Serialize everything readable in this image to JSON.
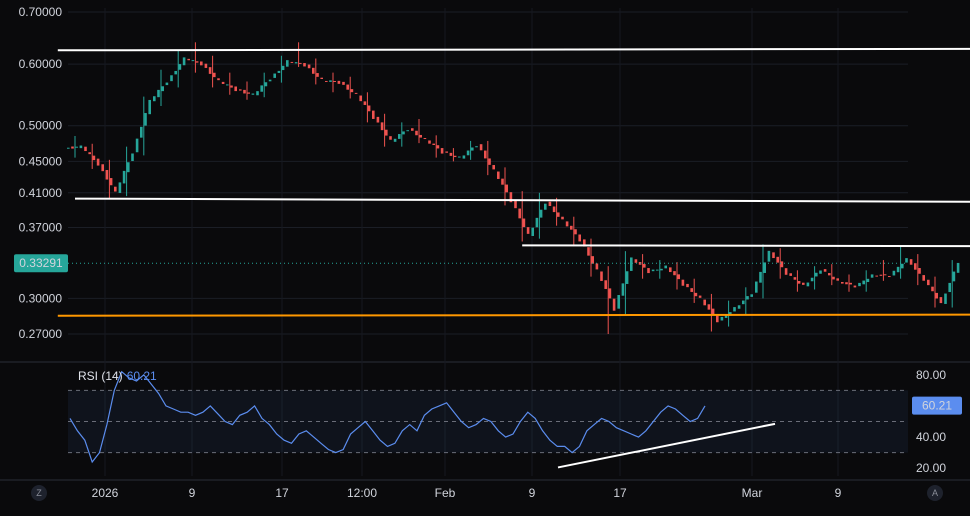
{
  "chart_data": [
    {
      "type": "candlestick",
      "y_scale": "log",
      "y_ticks": [
        "0.70000",
        "0.60000",
        "0.50000",
        "0.45000",
        "0.41000",
        "0.37000",
        "0.30000",
        "0.27000"
      ],
      "y_tick_values": [
        0.7,
        0.6,
        0.5,
        0.45,
        0.41,
        0.37,
        0.3,
        0.27
      ],
      "last_price": "0.33291",
      "last_price_value": 0.33291,
      "x_ticks": [
        "2026",
        "9",
        "17",
        "12:00",
        "Feb",
        "9",
        "17",
        "Mar",
        "9"
      ],
      "series": [
        {
          "x": "Jan 1",
          "o": 0.468,
          "h": 0.485,
          "l": 0.455,
          "c": 0.47
        },
        {
          "x": "Jan 2",
          "o": 0.47,
          "h": 0.474,
          "l": 0.44,
          "c": 0.446
        },
        {
          "x": "Jan 3",
          "o": 0.446,
          "h": 0.452,
          "l": 0.402,
          "c": 0.41
        },
        {
          "x": "Jan 4",
          "o": 0.41,
          "h": 0.47,
          "l": 0.406,
          "c": 0.462
        },
        {
          "x": "Jan 5",
          "o": 0.462,
          "h": 0.545,
          "l": 0.458,
          "c": 0.538
        },
        {
          "x": "Jan 6",
          "o": 0.538,
          "h": 0.59,
          "l": 0.53,
          "c": 0.57
        },
        {
          "x": "Jan 7",
          "o": 0.57,
          "h": 0.625,
          "l": 0.56,
          "c": 0.61
        },
        {
          "x": "Jan 8",
          "o": 0.61,
          "h": 0.64,
          "l": 0.585,
          "c": 0.6
        },
        {
          "x": "Jan 9",
          "o": 0.6,
          "h": 0.615,
          "l": 0.56,
          "c": 0.57
        },
        {
          "x": "Jan 10",
          "o": 0.57,
          "h": 0.585,
          "l": 0.548,
          "c": 0.556
        },
        {
          "x": "Jan 11",
          "o": 0.556,
          "h": 0.57,
          "l": 0.54,
          "c": 0.548
        },
        {
          "x": "Jan 12",
          "o": 0.548,
          "h": 0.585,
          "l": 0.544,
          "c": 0.575
        },
        {
          "x": "Jan 13",
          "o": 0.575,
          "h": 0.615,
          "l": 0.568,
          "c": 0.605
        },
        {
          "x": "Jan 14",
          "o": 0.605,
          "h": 0.64,
          "l": 0.595,
          "c": 0.598
        },
        {
          "x": "Jan 15",
          "o": 0.598,
          "h": 0.61,
          "l": 0.565,
          "c": 0.572
        },
        {
          "x": "Jan 16",
          "o": 0.572,
          "h": 0.585,
          "l": 0.552,
          "c": 0.568
        },
        {
          "x": "Jan 17",
          "o": 0.568,
          "h": 0.578,
          "l": 0.542,
          "c": 0.548
        },
        {
          "x": "Jan 18",
          "o": 0.548,
          "h": 0.552,
          "l": 0.505,
          "c": 0.512
        },
        {
          "x": "Jan 19",
          "o": 0.512,
          "h": 0.518,
          "l": 0.47,
          "c": 0.478
        },
        {
          "x": "Jan 20",
          "o": 0.478,
          "h": 0.505,
          "l": 0.47,
          "c": 0.495
        },
        {
          "x": "Jan 21",
          "o": 0.495,
          "h": 0.51,
          "l": 0.475,
          "c": 0.48
        },
        {
          "x": "Jan 22",
          "o": 0.48,
          "h": 0.486,
          "l": 0.455,
          "c": 0.462
        },
        {
          "x": "Jan 23",
          "o": 0.462,
          "h": 0.468,
          "l": 0.45,
          "c": 0.455
        },
        {
          "x": "Jan 24",
          "o": 0.455,
          "h": 0.478,
          "l": 0.452,
          "c": 0.472
        },
        {
          "x": "Jan 25",
          "o": 0.472,
          "h": 0.478,
          "l": 0.432,
          "c": 0.438
        },
        {
          "x": "Jan 26",
          "o": 0.438,
          "h": 0.442,
          "l": 0.395,
          "c": 0.4
        },
        {
          "x": "Jan 27",
          "o": 0.4,
          "h": 0.412,
          "l": 0.355,
          "c": 0.362
        },
        {
          "x": "Jan 28",
          "o": 0.362,
          "h": 0.41,
          "l": 0.358,
          "c": 0.398
        },
        {
          "x": "Jan 29",
          "o": 0.398,
          "h": 0.404,
          "l": 0.372,
          "c": 0.378
        },
        {
          "x": "Jan 30",
          "o": 0.378,
          "h": 0.382,
          "l": 0.35,
          "c": 0.356
        },
        {
          "x": "Jan 31",
          "o": 0.356,
          "h": 0.358,
          "l": 0.32,
          "c": 0.326
        },
        {
          "x": "Feb 1",
          "o": 0.326,
          "h": 0.33,
          "l": 0.27,
          "c": 0.29
        },
        {
          "x": "Feb 2",
          "o": 0.29,
          "h": 0.345,
          "l": 0.285,
          "c": 0.338
        },
        {
          "x": "Feb 3",
          "o": 0.338,
          "h": 0.342,
          "l": 0.318,
          "c": 0.324
        },
        {
          "x": "Feb 4",
          "o": 0.324,
          "h": 0.336,
          "l": 0.318,
          "c": 0.33
        },
        {
          "x": "Feb 5",
          "o": 0.33,
          "h": 0.334,
          "l": 0.308,
          "c": 0.312
        },
        {
          "x": "Feb 6",
          "o": 0.312,
          "h": 0.318,
          "l": 0.296,
          "c": 0.3
        },
        {
          "x": "Feb 7",
          "o": 0.3,
          "h": 0.304,
          "l": 0.272,
          "c": 0.28
        },
        {
          "x": "Feb 8",
          "o": 0.28,
          "h": 0.298,
          "l": 0.276,
          "c": 0.292
        },
        {
          "x": "Feb 9",
          "o": 0.292,
          "h": 0.31,
          "l": 0.286,
          "c": 0.304
        },
        {
          "x": "Feb 10",
          "o": 0.304,
          "h": 0.352,
          "l": 0.3,
          "c": 0.345
        },
        {
          "x": "Feb 11",
          "o": 0.345,
          "h": 0.348,
          "l": 0.318,
          "c": 0.322
        },
        {
          "x": "Feb 12",
          "o": 0.322,
          "h": 0.326,
          "l": 0.306,
          "c": 0.312
        },
        {
          "x": "Feb 13",
          "o": 0.312,
          "h": 0.33,
          "l": 0.308,
          "c": 0.326
        },
        {
          "x": "Feb 14",
          "o": 0.326,
          "h": 0.332,
          "l": 0.312,
          "c": 0.316
        },
        {
          "x": "Feb 15",
          "o": 0.316,
          "h": 0.322,
          "l": 0.306,
          "c": 0.31
        },
        {
          "x": "Feb 16",
          "o": 0.31,
          "h": 0.326,
          "l": 0.306,
          "c": 0.322
        },
        {
          "x": "Feb 17",
          "o": 0.322,
          "h": 0.336,
          "l": 0.316,
          "c": 0.32
        },
        {
          "x": "Feb 18",
          "o": 0.32,
          "h": 0.35,
          "l": 0.318,
          "c": 0.338
        },
        {
          "x": "Feb 19",
          "o": 0.338,
          "h": 0.342,
          "l": 0.312,
          "c": 0.316
        },
        {
          "x": "Feb 20",
          "o": 0.316,
          "h": 0.32,
          "l": 0.292,
          "c": 0.296
        },
        {
          "x": "Feb 21",
          "o": 0.296,
          "h": 0.336,
          "l": 0.292,
          "c": 0.333
        }
      ],
      "trend_lines": [
        {
          "from": "Dec 31",
          "to": "Feb 28",
          "y1": 0.625,
          "y2": 0.628,
          "color": "#ffffff"
        },
        {
          "from": "Jan 1",
          "to": "Feb 26",
          "y1": 0.403,
          "y2": 0.399,
          "color": "#ffffff"
        },
        {
          "from": "Jan 27",
          "to": "Feb 26",
          "y1": 0.351,
          "y2": 0.35,
          "color": "#ffffff"
        },
        {
          "from": "Dec 31",
          "to": "Feb 28",
          "y1": 0.285,
          "y2": 0.286,
          "color": "#ff9800"
        }
      ]
    },
    {
      "type": "line",
      "title": "RSI (14)",
      "current_value": "60.21",
      "ylim": [
        15,
        85
      ],
      "y_ticks": [
        "80.00",
        "40.00",
        "20.00"
      ],
      "y_tick_values": [
        80,
        40,
        20
      ],
      "band_levels": [
        30,
        50,
        70
      ],
      "line_color": "#5b8def",
      "values": [
        52,
        44,
        38,
        24,
        30,
        48,
        70,
        82,
        78,
        76,
        80,
        74,
        68,
        60,
        58,
        56,
        56,
        54,
        56,
        60,
        55,
        50,
        48,
        54,
        56,
        60,
        52,
        48,
        42,
        38,
        36,
        42,
        44,
        40,
        36,
        32,
        30,
        32,
        42,
        46,
        50,
        44,
        38,
        34,
        36,
        44,
        48,
        44,
        54,
        58,
        60,
        62,
        56,
        50,
        46,
        48,
        52,
        50,
        44,
        40,
        42,
        50,
        56,
        52,
        44,
        38,
        34,
        34,
        30,
        34,
        44,
        48,
        52,
        50,
        46,
        44,
        42,
        40,
        44,
        50,
        56,
        60,
        58,
        54,
        50,
        52,
        60
      ],
      "trend_line": {
        "from_index": 60,
        "to_index": 96,
        "y1": 20.5,
        "y2": 48.5,
        "color": "#ffffff"
      }
    }
  ],
  "ui": {
    "left_button": "Z",
    "right_button": "A"
  },
  "colors": {
    "up": "#26a69a",
    "down": "#ef5350",
    "rsi": "#5b8def",
    "last_price_bg": "#26a69a",
    "support": "#ff9800"
  }
}
